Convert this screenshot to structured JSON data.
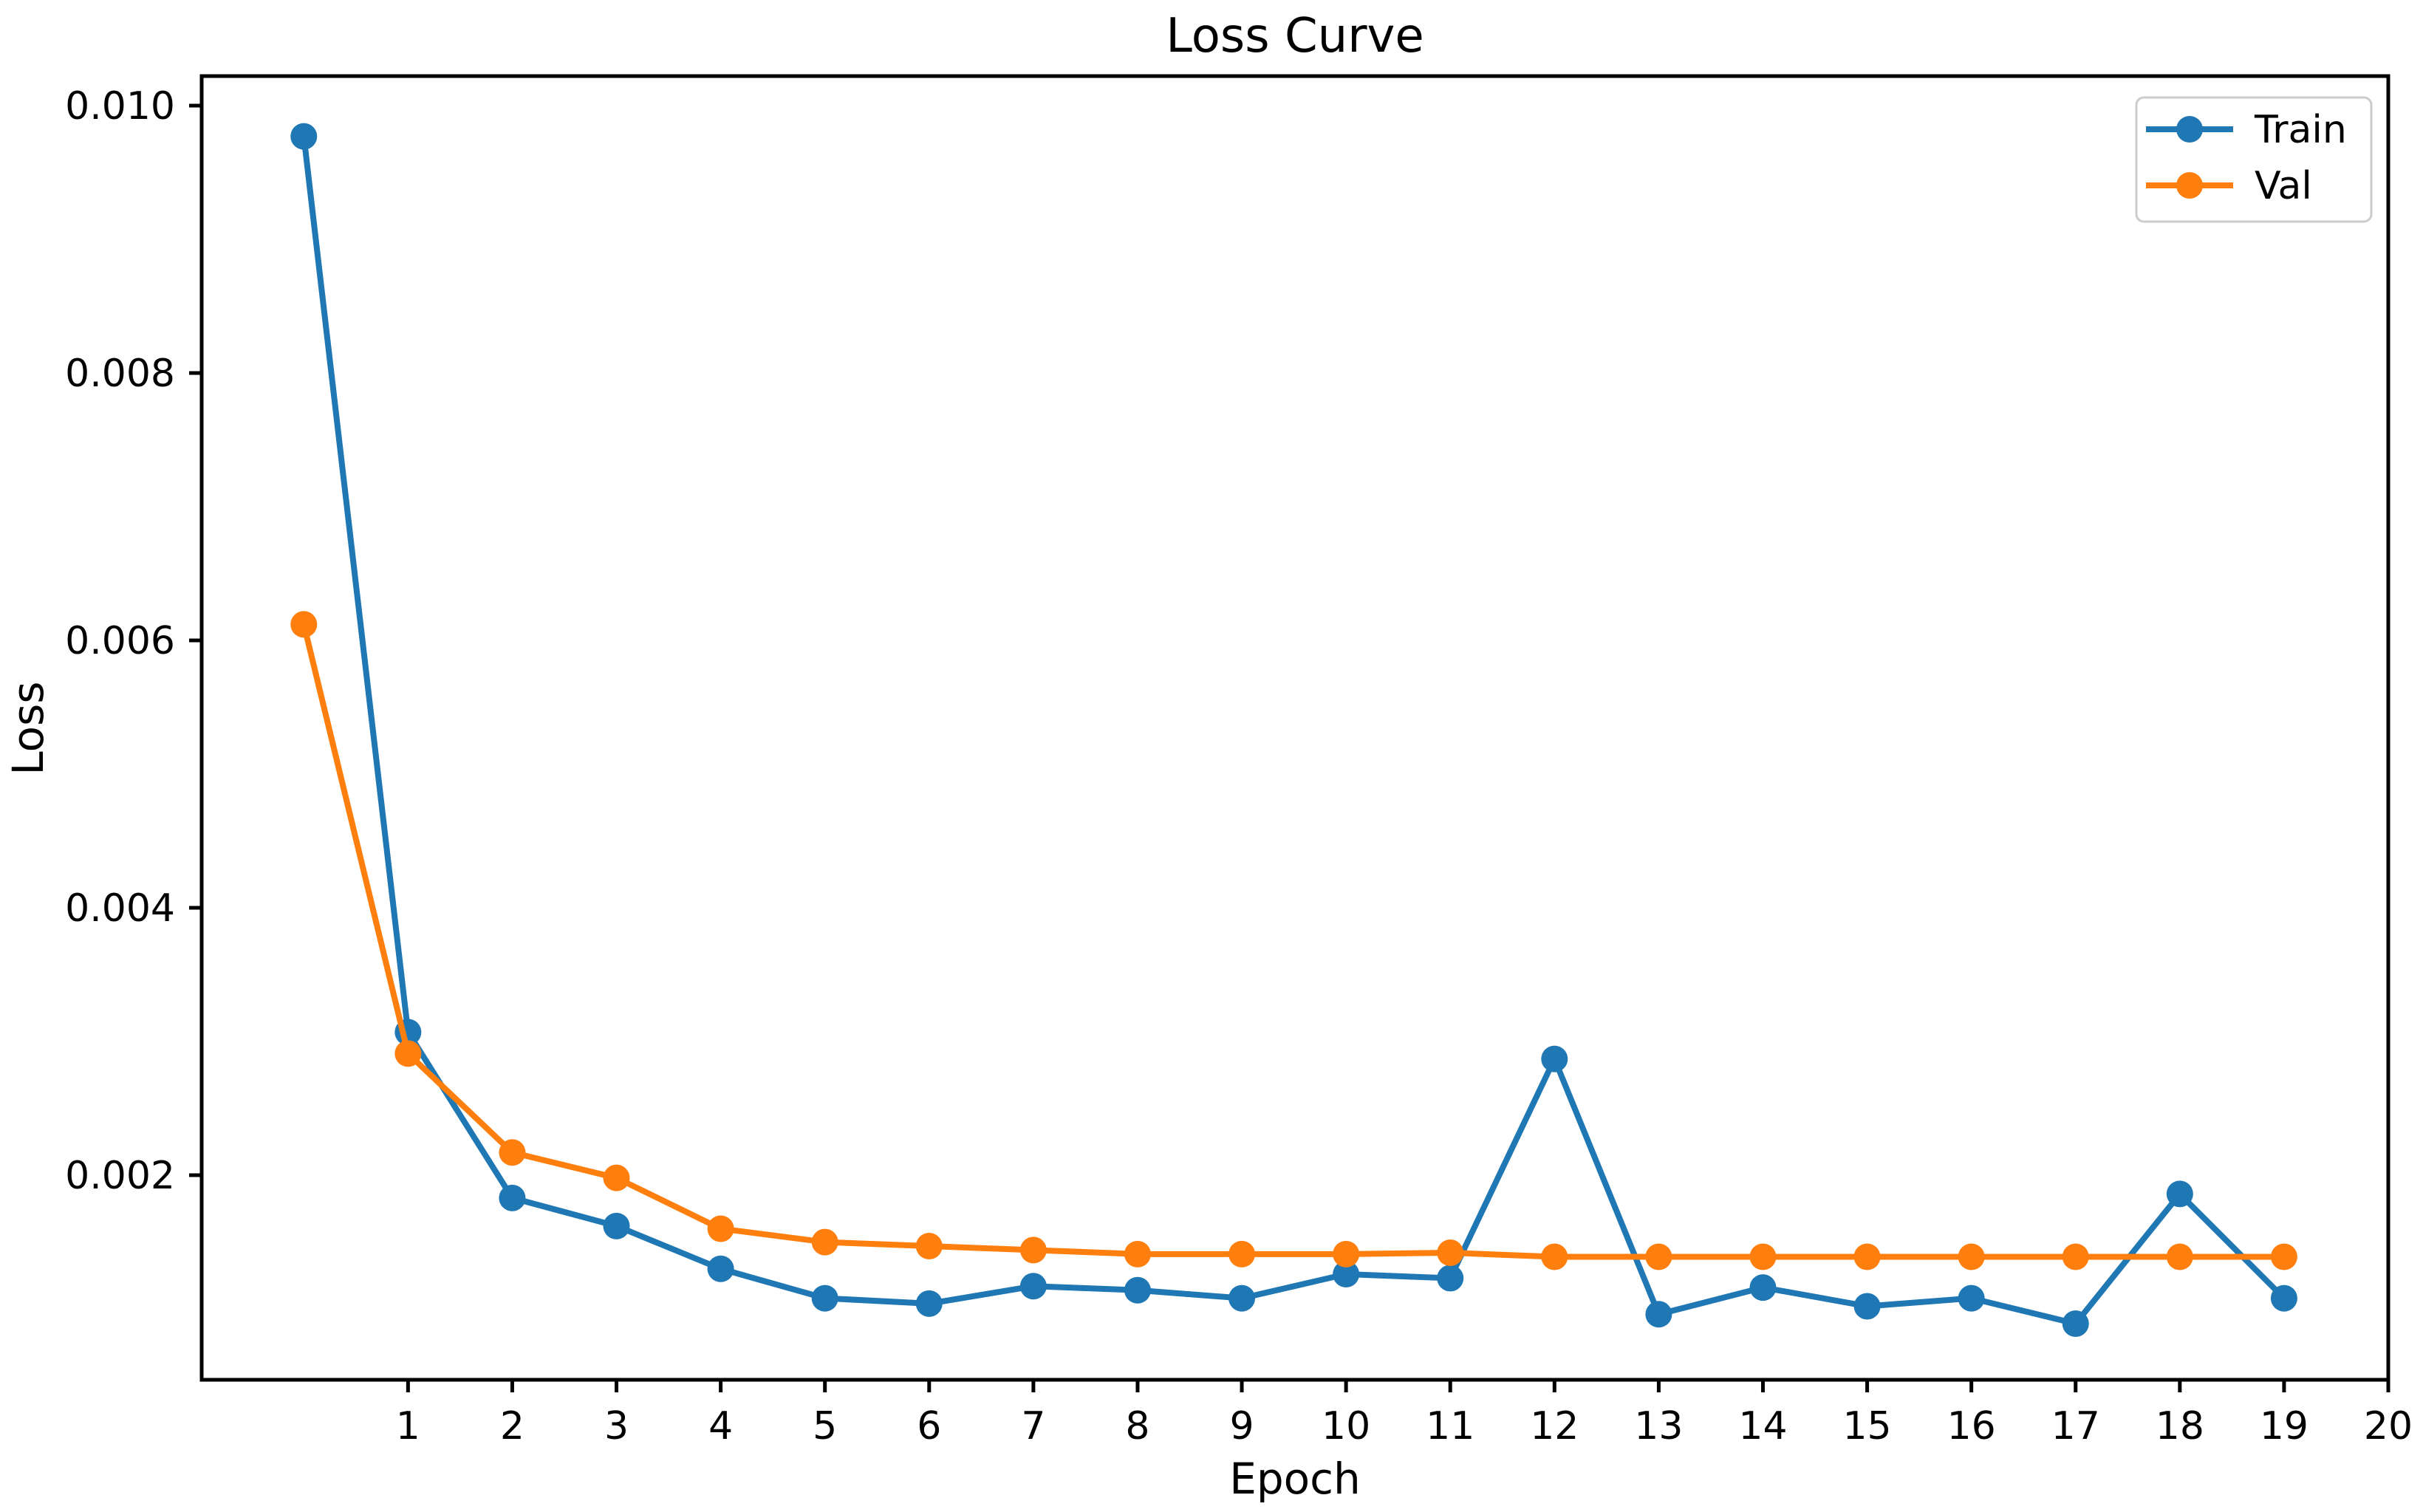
{
  "chart_data": {
    "type": "line",
    "title": "Loss Curve",
    "xlabel": "Epoch",
    "ylabel": "Loss",
    "grid": false,
    "legend_position": "upper right",
    "xlim": [
      -0.98,
      20.0
    ],
    "ylim": [
      0.00047,
      0.010221
    ],
    "x": [
      0,
      1,
      2,
      3,
      4,
      5,
      6,
      7,
      8,
      9,
      10,
      11,
      12,
      13,
      14,
      15,
      16,
      17,
      18,
      19
    ],
    "x_tick_values": [
      1,
      2,
      3,
      4,
      5,
      6,
      7,
      8,
      9,
      10,
      11,
      12,
      13,
      14,
      15,
      16,
      17,
      18,
      19,
      20
    ],
    "x_tick_labels": [
      "1",
      "2",
      "3",
      "4",
      "5",
      "6",
      "7",
      "8",
      "9",
      "10",
      "11",
      "12",
      "13",
      "14",
      "15",
      "16",
      "17",
      "18",
      "19",
      "20"
    ],
    "y_tick_values": [
      0.002,
      0.004,
      0.006,
      0.008,
      0.01
    ],
    "y_tick_labels": [
      "0.002",
      "0.004",
      "0.006",
      "0.008",
      "0.010"
    ],
    "series": [
      {
        "name": "Train",
        "color": "#1f77b4",
        "values": [
          0.00977,
          0.00307,
          0.00183,
          0.00162,
          0.0013,
          0.00108,
          0.00104,
          0.00117,
          0.00114,
          0.00108,
          0.00126,
          0.00123,
          0.00287,
          0.00096,
          0.00116,
          0.00102,
          0.00108,
          0.00089,
          0.00186,
          0.00108
        ]
      },
      {
        "name": "Val",
        "color": "#ff7f0e",
        "values": [
          0.00612,
          0.00291,
          0.00217,
          0.00198,
          0.0016,
          0.0015,
          0.00147,
          0.00144,
          0.00141,
          0.00141,
          0.00141,
          0.00142,
          0.00139,
          0.00139,
          0.00139,
          0.00139,
          0.00139,
          0.00139,
          0.00139,
          0.00139
        ]
      }
    ]
  }
}
